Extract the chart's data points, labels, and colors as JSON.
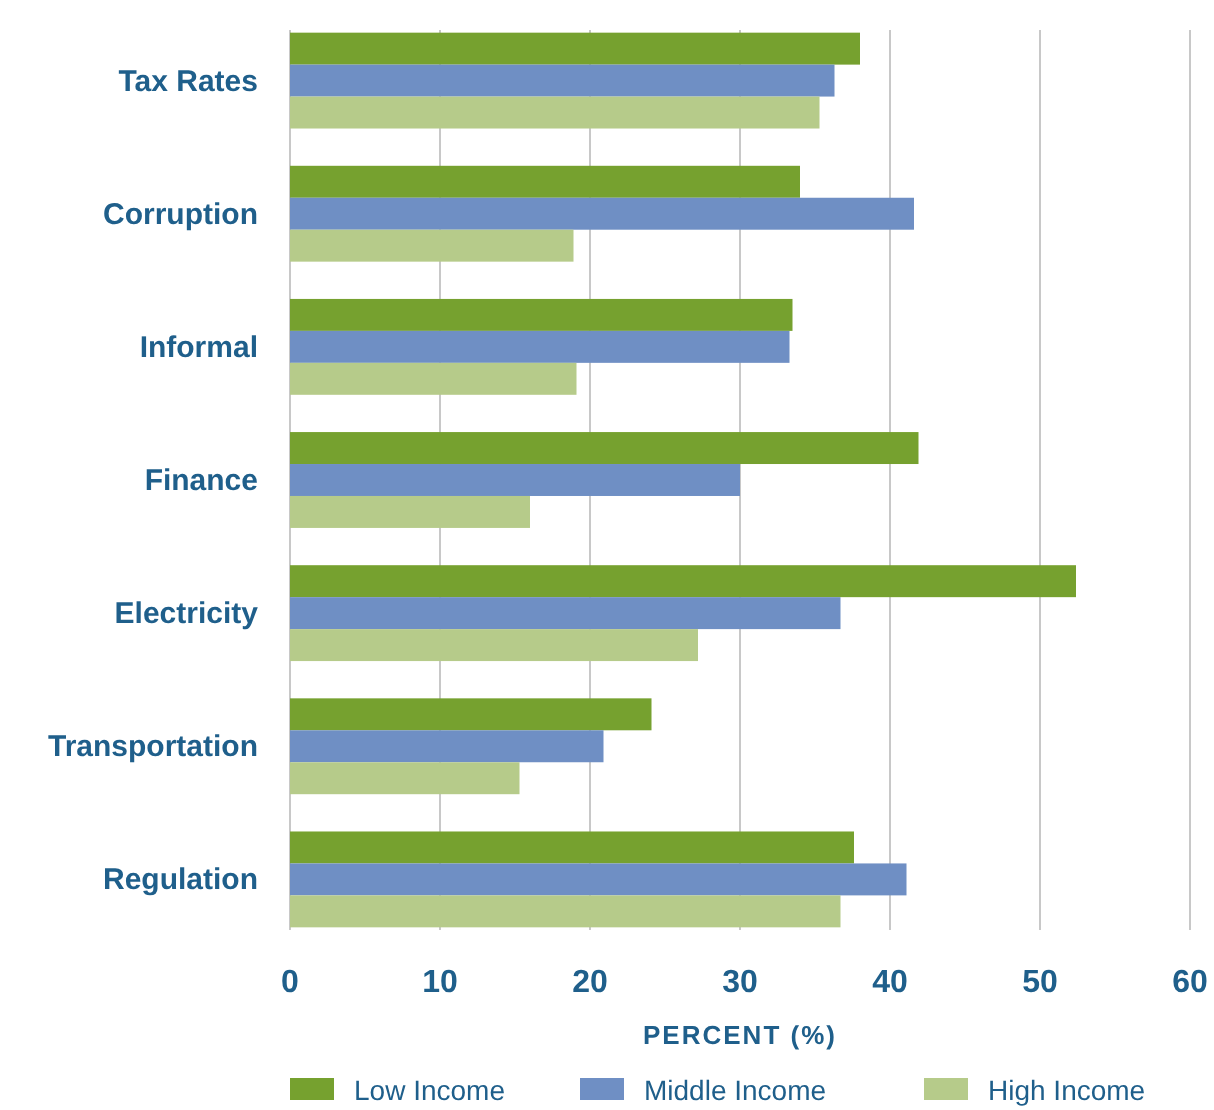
{
  "chart_data": {
    "type": "bar",
    "orientation": "horizontal",
    "xlabel": "PERCENT (%)",
    "categories": [
      "Tax Rates",
      "Corruption",
      "Informal",
      "Finance",
      "Electricity",
      "Transportation",
      "Regulation"
    ],
    "series": [
      {
        "name": "Low Income",
        "color": "#76a12f",
        "values": [
          38.0,
          34.0,
          33.5,
          41.9,
          52.4,
          24.1,
          37.6
        ]
      },
      {
        "name": "Middle Income",
        "color": "#6f8fc4",
        "values": [
          36.3,
          41.6,
          33.3,
          30.0,
          36.7,
          20.9,
          41.1
        ]
      },
      {
        "name": "High Income",
        "color": "#b6cb8a",
        "values": [
          35.3,
          18.9,
          19.1,
          16.0,
          27.2,
          15.3,
          36.7
        ]
      }
    ],
    "xlim": [
      0,
      60
    ],
    "xticks": [
      0,
      10,
      20,
      30,
      40,
      50,
      60
    ],
    "grid": "x",
    "legend": "bottom"
  }
}
